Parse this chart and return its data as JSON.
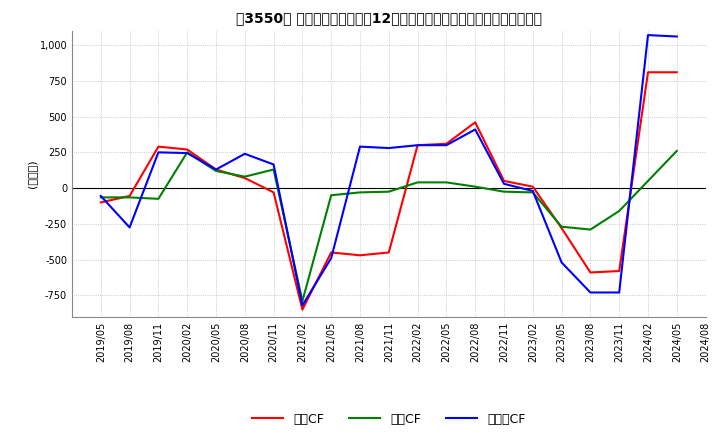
{
  "title": "【3550】 キャッシュフローの12か月移動合計の対前年同期増減額の推移",
  "ylabel": "(百万円)",
  "ylim": [
    -900,
    1100
  ],
  "yticks": [
    -750,
    -500,
    -250,
    0,
    250,
    500,
    750,
    1000
  ],
  "legend_labels": [
    "営業CF",
    "投資CF",
    "フリーCF"
  ],
  "legend_colors": [
    "#ff0000",
    "#008000",
    "#0000ff"
  ],
  "dates": [
    "2019/05",
    "2019/08",
    "2019/11",
    "2020/02",
    "2020/05",
    "2020/08",
    "2020/11",
    "2021/02",
    "2021/05",
    "2021/08",
    "2021/11",
    "2022/02",
    "2022/05",
    "2022/08",
    "2022/11",
    "2023/02",
    "2023/05",
    "2023/08",
    "2023/11",
    "2024/02",
    "2024/05",
    "2024/08"
  ],
  "operating_cf": [
    -100,
    -55,
    290,
    270,
    130,
    70,
    -30,
    -850,
    -450,
    -470,
    -450,
    300,
    310,
    460,
    50,
    10,
    -280,
    -590,
    -580,
    810,
    810,
    null
  ],
  "investing_cf": [
    -65,
    -65,
    -75,
    250,
    120,
    80,
    130,
    -790,
    -50,
    -30,
    -25,
    40,
    40,
    10,
    -25,
    -30,
    -270,
    -290,
    -160,
    50,
    260,
    null
  ],
  "free_cf": [
    -55,
    -275,
    250,
    245,
    130,
    240,
    165,
    -820,
    -490,
    290,
    280,
    300,
    300,
    410,
    30,
    -20,
    -520,
    -730,
    -730,
    1070,
    1060,
    null
  ],
  "background_color": "#ffffff",
  "grid_color": "#aaaaaa",
  "plot_bg_color": "#ffffff"
}
